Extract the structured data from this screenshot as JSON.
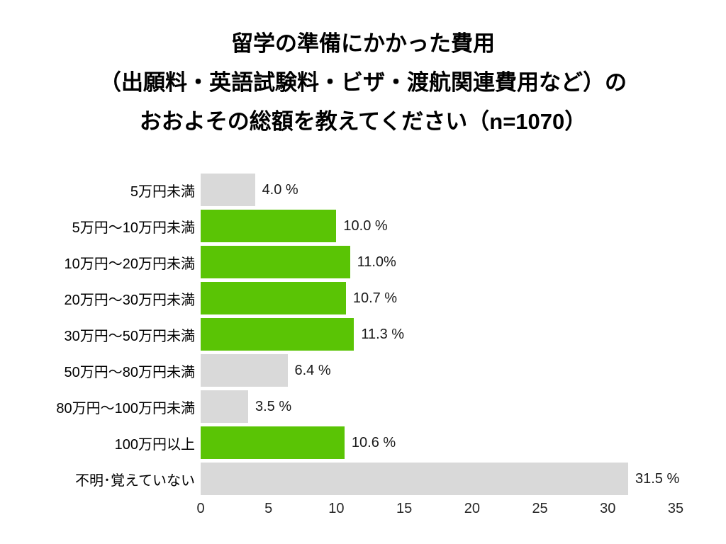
{
  "title": {
    "lines": [
      "留学の準備にかかった費用",
      "（出願料・英語試験料・ビザ・渡航関連費用など）の",
      "おおよその総額を教えてください（n=1070）"
    ]
  },
  "chart_data": {
    "type": "bar",
    "orientation": "horizontal",
    "title": "留学の準備にかかった費用（出願料・英語試験料・ビザ・渡航関連費用など）のおおよその総額を教えてください（n=1070）",
    "n": 1070,
    "categories": [
      "5万円未満",
      "5万円～10万円未満",
      "10万円～20万円未満",
      "20万円～30万円未満",
      "30万円～50万円未満",
      "50万円～80万円未満",
      "80万円～100万円未満",
      "100万円以上",
      "不明･覚えていない"
    ],
    "values": [
      4.0,
      10.0,
      11.0,
      10.7,
      11.3,
      6.4,
      3.5,
      10.6,
      31.5
    ],
    "value_labels": [
      "4.0 %",
      "10.0 %",
      "11.0%",
      "10.7 %",
      "11.3 %",
      "6.4 %",
      "3.5 %",
      "10.6 %",
      "31.5 %"
    ],
    "unit": "%",
    "bar_colors": [
      "#d9d9d9",
      "#5ac405",
      "#5ac405",
      "#5ac405",
      "#5ac405",
      "#d9d9d9",
      "#d9d9d9",
      "#5ac405",
      "#d9d9d9"
    ],
    "colors": {
      "accent_green": "#5ac405",
      "muted_gray": "#d9d9d9"
    },
    "x_ticks": [
      0,
      5,
      10,
      15,
      20,
      25,
      30,
      35
    ],
    "xlim": [
      0,
      35
    ],
    "grid": false,
    "legend": null,
    "xlabel": "",
    "ylabel": ""
  }
}
